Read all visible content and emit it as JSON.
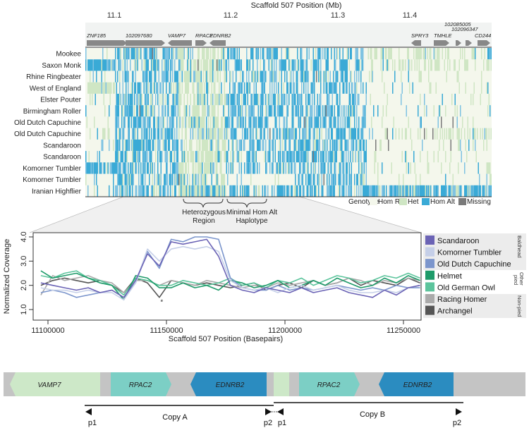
{
  "top_panel": {
    "axis_title": "Scaffold 507 Position (Mb)",
    "ticks": [
      {
        "label": "11.1",
        "value": 11.1
      },
      {
        "label": "11.2",
        "value": 11.2
      },
      {
        "label": "11.3",
        "value": 11.3
      },
      {
        "label": "11.4",
        "value": 11.4
      }
    ],
    "genes": [
      {
        "name": "ZNF185",
        "dir": "right"
      },
      {
        "name": "102097680",
        "dir": "right"
      },
      {
        "name": "VAMP7",
        "dir": "left"
      },
      {
        "name": "RPAC2",
        "dir": "right"
      },
      {
        "name": "EDNRB2",
        "dir": "left"
      },
      {
        "name": "SPRY3",
        "dir": "left"
      },
      {
        "name": "TMHLE",
        "dir": "right"
      },
      {
        "name": "102085005",
        "dir": "right"
      },
      {
        "name": "102096347",
        "dir": "right"
      },
      {
        "name": "CD244",
        "dir": "right"
      }
    ],
    "rows": [
      "Mookee",
      "Saxon Monk",
      "Rhine Ringbeater",
      "West of England",
      "Elster Pouter",
      "Birmingham Roller",
      "Old Dutch Capuchine",
      "Old Dutch Capuchine",
      "Scandaroon",
      "Scandaroon",
      "Komorner Tumbler",
      "Komorner Tumbler",
      "Iranian Highflier"
    ],
    "legend": {
      "title": "Genotype",
      "items": [
        {
          "label": "Hom Ref",
          "color": "#f4f7ec"
        },
        {
          "label": "Het",
          "color": "#cfe6c4"
        },
        {
          "label": "Hom Alt",
          "color": "#3aaad6"
        },
        {
          "label": "Missing",
          "color": "#7a7a7a"
        }
      ]
    },
    "annotations": {
      "het_region_1": "Heterozygous",
      "het_region_2": "Region",
      "min_hap_1": "Minimal Hom Alt",
      "min_hap_2": "Haplotype"
    }
  },
  "chart_data": {
    "type": "line",
    "xlabel": "Scaffold 507 Position (Basepairs)",
    "ylabel": "Normalized Coverage",
    "xlim": [
      11095000,
      11260000
    ],
    "ylim": [
      0.9,
      4.2
    ],
    "xticks": [
      11100000,
      11150000,
      11200000,
      11250000
    ],
    "xtick_labels": [
      "11100000",
      "11150000",
      "11200000",
      "11250000"
    ],
    "yticks": [
      1.0,
      2.0,
      3.0,
      4.0
    ],
    "ytick_labels": [
      "1.0",
      "2.0",
      "3.0",
      "4.0"
    ],
    "annotation": "*",
    "annotation_at": [
      11148000,
      1.3
    ],
    "x": [
      11097000,
      11102000,
      11107000,
      11112000,
      11117000,
      11122000,
      11127000,
      11132000,
      11137000,
      11142000,
      11147000,
      11152000,
      11157000,
      11162000,
      11167000,
      11172000,
      11177000,
      11182000,
      11187000,
      11192000,
      11197000,
      11202000,
      11207000,
      11212000,
      11217000,
      11222000,
      11227000,
      11232000,
      11237000,
      11242000,
      11247000,
      11252000,
      11257000
    ],
    "series": [
      {
        "name": "Scandaroon",
        "group": "Baldhead",
        "color": "#6b63b5",
        "values": [
          2.1,
          2.0,
          1.9,
          1.8,
          1.9,
          1.7,
          1.8,
          1.5,
          2.2,
          3.3,
          2.8,
          3.8,
          3.7,
          3.8,
          3.9,
          3.2,
          2.0,
          1.8,
          1.7,
          1.9,
          1.8,
          1.7,
          1.9,
          1.7,
          1.8,
          1.9,
          1.7,
          1.6,
          1.5,
          1.8,
          1.6,
          1.9,
          2.0
        ]
      },
      {
        "name": "Komorner Tumbler",
        "group": "Baldhead",
        "color": "#c5cfe8",
        "values": [
          1.9,
          1.8,
          1.8,
          1.7,
          1.8,
          1.7,
          1.7,
          1.4,
          2.1,
          3.5,
          3.0,
          3.5,
          3.6,
          3.5,
          3.6,
          3.4,
          2.2,
          1.9,
          1.8,
          1.9,
          1.7,
          1.9,
          2.0,
          1.8,
          1.9,
          2.0,
          1.8,
          1.7,
          1.7,
          1.8,
          1.7,
          1.9,
          2.0
        ]
      },
      {
        "name": "Old Dutch Capuchine",
        "group": "Baldhead",
        "color": "#7b95cc",
        "values": [
          1.7,
          1.8,
          1.7,
          1.5,
          1.6,
          1.7,
          1.8,
          1.5,
          2.1,
          3.4,
          2.7,
          3.9,
          3.8,
          4.0,
          4.0,
          3.9,
          2.3,
          1.9,
          1.8,
          1.8,
          2.0,
          1.8,
          1.9,
          1.8,
          1.9,
          2.0,
          1.9,
          1.8,
          1.9,
          1.8,
          2.0,
          1.9,
          1.9
        ]
      },
      {
        "name": "Helmet",
        "group": "Other pied",
        "color": "#1e9b6a",
        "values": [
          2.6,
          2.3,
          2.4,
          2.5,
          2.3,
          2.1,
          2.0,
          1.4,
          2.4,
          2.3,
          1.9,
          1.9,
          2.1,
          1.9,
          2.0,
          1.8,
          2.2,
          2.1,
          1.9,
          2.0,
          2.2,
          1.9,
          2.0,
          2.2,
          2.0,
          2.3,
          2.1,
          1.9,
          2.0,
          2.3,
          2.1,
          2.4,
          2.2
        ]
      },
      {
        "name": "Old German Owl",
        "group": "Other pied",
        "color": "#5cc49c",
        "values": [
          2.4,
          2.3,
          2.5,
          2.6,
          2.3,
          2.2,
          2.0,
          1.6,
          2.3,
          2.2,
          2.0,
          2.0,
          2.2,
          2.1,
          2.0,
          2.1,
          2.3,
          2.0,
          2.1,
          1.9,
          2.2,
          2.1,
          2.3,
          2.0,
          2.2,
          2.4,
          2.3,
          2.1,
          2.2,
          2.4,
          2.3,
          2.5,
          2.3
        ]
      },
      {
        "name": "Racing Homer",
        "group": "Non-pied",
        "color": "#aaaaaa",
        "values": [
          1.6,
          2.4,
          2.2,
          2.3,
          2.4,
          2.2,
          2.1,
          1.7,
          2.2,
          2.2,
          2.0,
          2.2,
          2.1,
          2.0,
          2.2,
          2.1,
          2.0,
          1.9,
          2.0,
          1.9,
          2.1,
          2.0,
          2.1,
          2.2,
          2.0,
          2.1,
          2.3,
          2.2,
          2.0,
          2.2,
          2.1,
          2.3,
          2.2
        ]
      },
      {
        "name": "Archangel",
        "group": "Non-pied",
        "color": "#555555",
        "values": [
          2.0,
          2.2,
          2.3,
          2.2,
          2.1,
          2.2,
          2.0,
          1.7,
          2.3,
          2.1,
          1.5,
          2.2,
          2.1,
          2.0,
          2.1,
          2.0,
          1.9,
          2.0,
          2.1,
          1.8,
          2.0,
          2.1,
          1.9,
          2.2,
          2.0,
          2.1,
          2.3,
          2.0,
          2.2,
          2.1,
          2.0,
          2.3,
          2.1
        ]
      }
    ],
    "legend_groups": [
      "Baldhead",
      "Other",
      "pied",
      "Non-pied"
    ]
  },
  "diagram": {
    "genes": [
      {
        "name": "VAMP7",
        "color": "#cde8c8"
      },
      {
        "name": "RPAC2",
        "color": "#7ccfc5"
      },
      {
        "name": "EDNRB2",
        "color": "#2b8cc0"
      },
      {
        "name": "RPAC2",
        "color": "#7ccfc5"
      },
      {
        "name": "EDNRB2",
        "color": "#2b8cc0"
      }
    ],
    "copy_a": "Copy A",
    "copy_b": "Copy B",
    "primers": [
      "p1",
      "p2",
      "p1",
      "p2"
    ]
  }
}
